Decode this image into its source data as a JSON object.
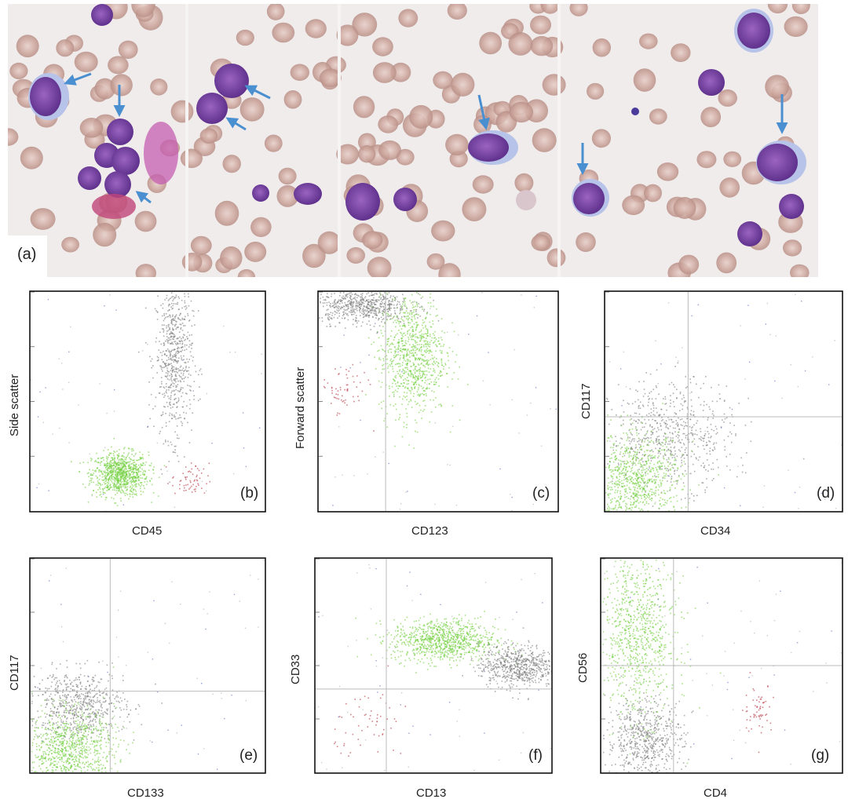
{
  "figure": {
    "panel_a_label": "(a)",
    "micrograph_panels": 4,
    "micrograph_arrow_color": "#4a8fd0",
    "colors": {
      "green_population": "#6fcf3a",
      "grey_population": "#7a7a7a",
      "red_population": "#c0505a",
      "blue_events": "#2a3fb0",
      "gridline": "#bbbbbb"
    }
  },
  "chart_data": [
    {
      "panel": "(b)",
      "type": "scatter",
      "xlabel": "CD45",
      "ylabel": "Side scatter",
      "quadrant_lines": false,
      "populations": [
        {
          "color": "green",
          "cx": 0.38,
          "cy": 0.17,
          "spread": [
            0.06,
            0.05
          ]
        },
        {
          "color": "grey",
          "cx": 0.61,
          "cy": 0.7,
          "spread": [
            0.04,
            0.18
          ]
        },
        {
          "color": "red",
          "cx": 0.68,
          "cy": 0.14,
          "spread": [
            0.04,
            0.04
          ]
        }
      ]
    },
    {
      "panel": "(c)",
      "type": "scatter",
      "xlabel": "CD123",
      "ylabel": "Forward scatter",
      "quadrant_lines": true,
      "threshold": [
        0.28,
        0.0
      ],
      "populations": [
        {
          "color": "green",
          "cx": 0.39,
          "cy": 0.72,
          "spread": [
            0.07,
            0.14
          ]
        },
        {
          "color": "grey",
          "cx": 0.18,
          "cy": 0.94,
          "spread": [
            0.1,
            0.04
          ]
        },
        {
          "color": "red",
          "cx": 0.1,
          "cy": 0.55,
          "spread": [
            0.05,
            0.06
          ]
        }
      ]
    },
    {
      "panel": "(d)",
      "type": "scatter",
      "xlabel": "CD34",
      "ylabel": "CD117",
      "quadrant_lines": true,
      "threshold": [
        0.35,
        0.43
      ],
      "populations": [
        {
          "color": "grey",
          "cx": 0.28,
          "cy": 0.35,
          "spread": [
            0.13,
            0.12
          ]
        },
        {
          "color": "green",
          "cx": 0.12,
          "cy": 0.13,
          "spread": [
            0.1,
            0.11
          ]
        }
      ]
    },
    {
      "panel": "(e)",
      "type": "scatter",
      "xlabel": "CD133",
      "ylabel": "CD117",
      "quadrant_lines": true,
      "threshold": [
        0.34,
        0.38
      ],
      "populations": [
        {
          "color": "grey",
          "cx": 0.2,
          "cy": 0.32,
          "spread": [
            0.1,
            0.08
          ]
        },
        {
          "color": "green",
          "cx": 0.16,
          "cy": 0.11,
          "spread": [
            0.1,
            0.09
          ]
        }
      ]
    },
    {
      "panel": "(f)",
      "type": "scatter",
      "xlabel": "CD13",
      "ylabel": "CD33",
      "quadrant_lines": true,
      "threshold": [
        0.3,
        0.39
      ],
      "populations": [
        {
          "color": "green",
          "cx": 0.54,
          "cy": 0.62,
          "spread": [
            0.11,
            0.05
          ]
        },
        {
          "color": "grey",
          "cx": 0.85,
          "cy": 0.5,
          "spread": [
            0.08,
            0.05
          ]
        },
        {
          "color": "red",
          "cx": 0.24,
          "cy": 0.23,
          "spread": [
            0.08,
            0.1
          ]
        }
      ]
    },
    {
      "panel": "(g)",
      "type": "scatter",
      "xlabel": "CD4",
      "ylabel": "CD56",
      "quadrant_lines": true,
      "threshold": [
        0.3,
        0.5
      ],
      "populations": [
        {
          "color": "green",
          "cx": 0.15,
          "cy": 0.65,
          "spread": [
            0.08,
            0.2
          ]
        },
        {
          "color": "grey",
          "cx": 0.18,
          "cy": 0.15,
          "spread": [
            0.08,
            0.1
          ]
        },
        {
          "color": "red",
          "cx": 0.65,
          "cy": 0.3,
          "spread": [
            0.03,
            0.06
          ]
        }
      ]
    }
  ]
}
